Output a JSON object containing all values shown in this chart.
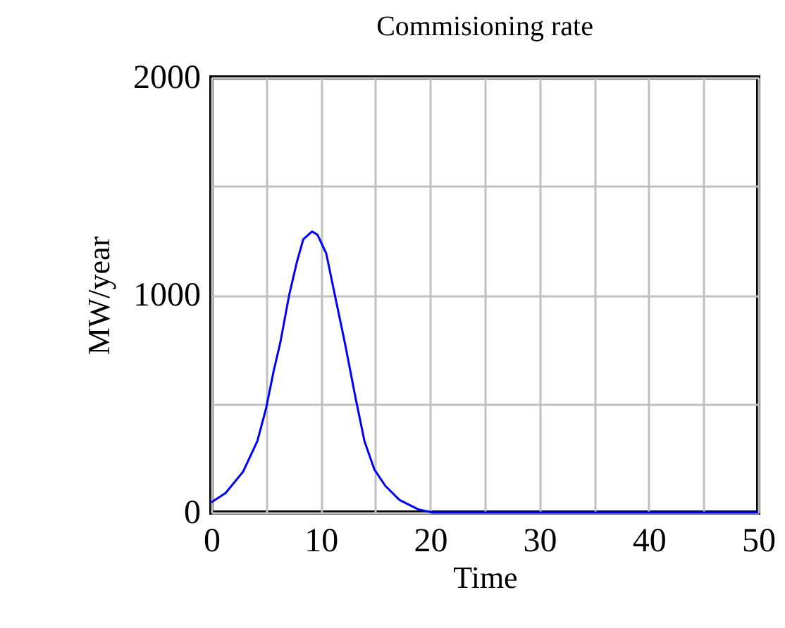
{
  "chart_data": {
    "type": "line",
    "title": "Commisioning rate",
    "xlabel": "Time",
    "ylabel": "MW/year",
    "x": [
      0,
      1.3,
      2.9,
      4.2,
      5.0,
      5.7,
      6.3,
      7.1,
      7.8,
      8.4,
      9.2,
      9.7,
      10.5,
      11.3,
      12.2,
      13.2,
      14.0,
      14.9,
      15.9,
      17.2,
      18.9,
      20.2,
      30,
      40,
      50
    ],
    "series": [
      {
        "color": "#0000ff",
        "values": [
          47,
          90,
          188,
          328,
          479,
          652,
          781,
          997,
          1148,
          1256,
          1292,
          1277,
          1191,
          997,
          781,
          522,
          328,
          198,
          123,
          58,
          15,
          0,
          0,
          0,
          0
        ]
      }
    ],
    "xlim": [
      0,
      50
    ],
    "ylim": [
      0,
      2000
    ],
    "xticks": [
      0,
      {
        "value": 5,
        "label": null
      },
      10,
      {
        "value": 15,
        "label": null
      },
      20,
      {
        "value": 25,
        "label": null
      },
      30,
      {
        "value": 35,
        "label": null
      },
      40,
      {
        "value": 45,
        "label": null
      },
      50
    ],
    "yticks": [
      0,
      {
        "value": 500,
        "label": null
      },
      1000,
      {
        "value": 1500,
        "label": null
      },
      2000
    ],
    "grid": true,
    "marker": "none",
    "line_style": "solid"
  }
}
